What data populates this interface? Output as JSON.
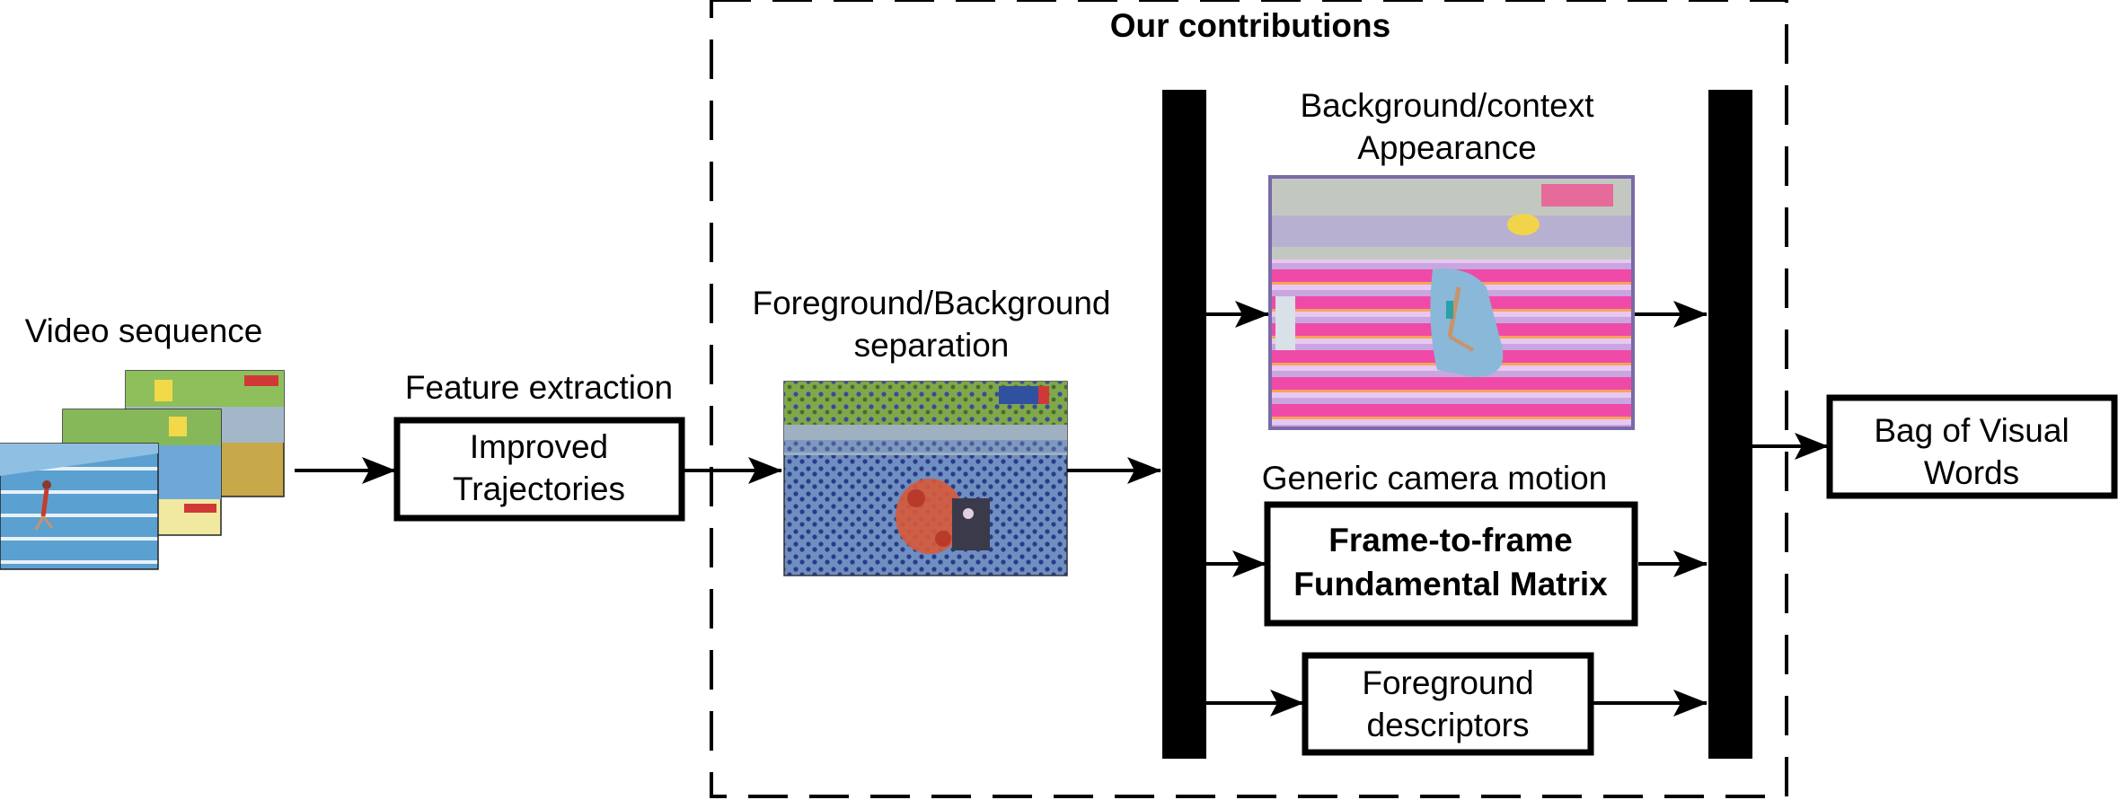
{
  "video": {
    "label": "Video sequence"
  },
  "feature": {
    "label": "Feature extraction",
    "line1": "Improved",
    "line2": "Trajectories"
  },
  "contrib": {
    "title": "Our contributions"
  },
  "fgbg": {
    "line1": "Foreground/Background",
    "line2": "separation"
  },
  "context": {
    "line1": "Background/context",
    "line2": "Appearance"
  },
  "camera": {
    "label": "Generic camera motion",
    "line1": "Frame-to-frame",
    "line2": "Fundamental Matrix"
  },
  "fgdesc": {
    "line1": "Foreground",
    "line2": "descriptors"
  },
  "bow": {
    "line1": "Bag of Visual",
    "line2": "Words"
  }
}
